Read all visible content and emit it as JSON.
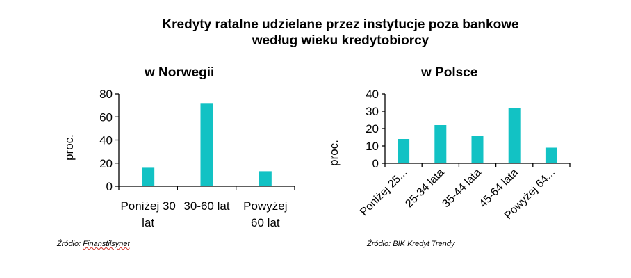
{
  "title_line1": "Kredyty ratalne udzielane przez instytucje poza bankowe",
  "title_line2": "według wieku kredytobiorcy",
  "colors": {
    "bar": "#12c2c4",
    "axis": "#000000"
  },
  "chart_data": [
    {
      "type": "bar",
      "title": "w Norwegii",
      "ylabel": "proc.",
      "ylim": [
        0,
        80
      ],
      "yticks": [
        "0",
        "20",
        "40",
        "60",
        "80"
      ],
      "ytick_values": [
        0,
        20,
        40,
        60,
        80
      ],
      "categories": [
        "Poniżej 30 lat",
        "30-60 lat",
        "Powyżej 60 lat"
      ],
      "category_lines": [
        [
          "Poniżej 30",
          "lat"
        ],
        [
          "30-60 lat"
        ],
        [
          "Powyżej",
          "60 lat"
        ]
      ],
      "values": [
        16,
        72,
        13
      ],
      "source_prefix": "Źródło: ",
      "source_name": "Finanstilsynet"
    },
    {
      "type": "bar",
      "title": "w Polsce",
      "ylabel": "proc.",
      "ylim": [
        0,
        40
      ],
      "yticks": [
        "0",
        "10",
        "20",
        "30",
        "40"
      ],
      "ytick_values": [
        0,
        10,
        20,
        30,
        40
      ],
      "categories": [
        "Poniżej 25...",
        "25-34 lata",
        "35-44 lata",
        "45-64 lata",
        "Powyżej 64..."
      ],
      "values": [
        14,
        22,
        16,
        32,
        9
      ],
      "source": "Źródło: BIK Kredyt Trendy"
    }
  ]
}
